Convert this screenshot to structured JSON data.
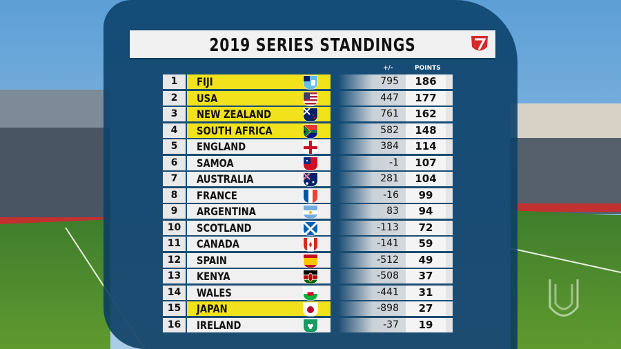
{
  "title": "2019 SERIES STANDINGS",
  "headers": {
    "diff": "+/-",
    "points": "POINTS"
  },
  "colors": {
    "qualified": "#f2e21c",
    "panel": "#0e4670",
    "row": "#f0f0f0"
  },
  "logo_icon": "hsbc-world-rugby-sevens-logo-icon",
  "standings": [
    {
      "rank": "1",
      "team": "FIJI",
      "q": "Q",
      "diff": "795",
      "points": "186",
      "flag": "fiji-flag-icon"
    },
    {
      "rank": "2",
      "team": "USA",
      "q": "Q",
      "diff": "447",
      "points": "177",
      "flag": "usa-flag-icon"
    },
    {
      "rank": "3",
      "team": "NEW ZEALAND",
      "q": "Q",
      "diff": "761",
      "points": "162",
      "flag": "new-zealand-flag-icon"
    },
    {
      "rank": "4",
      "team": "SOUTH AFRICA",
      "q": "Q",
      "diff": "582",
      "points": "148",
      "flag": "south-africa-flag-icon"
    },
    {
      "rank": "5",
      "team": "ENGLAND",
      "q": "",
      "diff": "384",
      "points": "114",
      "flag": "england-flag-icon"
    },
    {
      "rank": "6",
      "team": "SAMOA",
      "q": "",
      "diff": "-1",
      "points": "107",
      "flag": "samoa-flag-icon"
    },
    {
      "rank": "7",
      "team": "AUSTRALIA",
      "q": "",
      "diff": "281",
      "points": "104",
      "flag": "australia-flag-icon"
    },
    {
      "rank": "8",
      "team": "FRANCE",
      "q": "",
      "diff": "-16",
      "points": "99",
      "flag": "france-flag-icon"
    },
    {
      "rank": "9",
      "team": "ARGENTINA",
      "q": "",
      "diff": "83",
      "points": "94",
      "flag": "argentina-flag-icon"
    },
    {
      "rank": "10",
      "team": "SCOTLAND",
      "q": "",
      "diff": "-113",
      "points": "72",
      "flag": "scotland-flag-icon"
    },
    {
      "rank": "11",
      "team": "CANADA",
      "q": "",
      "diff": "-141",
      "points": "59",
      "flag": "canada-flag-icon"
    },
    {
      "rank": "12",
      "team": "SPAIN",
      "q": "",
      "diff": "-512",
      "points": "49",
      "flag": "spain-flag-icon"
    },
    {
      "rank": "13",
      "team": "KENYA",
      "q": "",
      "diff": "-508",
      "points": "37",
      "flag": "kenya-flag-icon"
    },
    {
      "rank": "14",
      "team": "WALES",
      "q": "",
      "diff": "-441",
      "points": "31",
      "flag": "wales-flag-icon"
    },
    {
      "rank": "15",
      "team": "JAPAN",
      "q": "Q",
      "diff": "-898",
      "points": "27",
      "flag": "japan-flag-icon"
    },
    {
      "rank": "16",
      "team": "IRELAND",
      "q": "",
      "diff": "-37",
      "points": "19",
      "flag": "ireland-flag-icon"
    }
  ]
}
